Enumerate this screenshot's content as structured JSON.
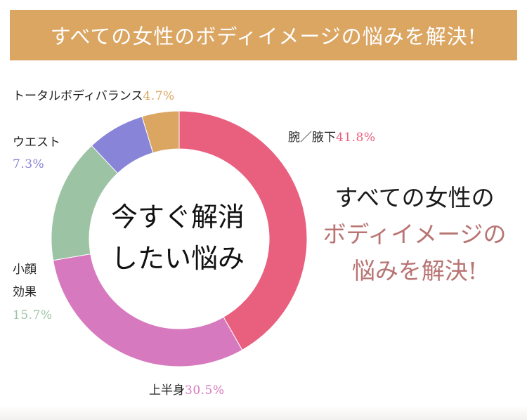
{
  "banner": {
    "title": "すべての女性のボディイメージの悩みを解決!"
  },
  "center": {
    "line1": "今すぐ解消",
    "line2": "したい悩み"
  },
  "tagline": {
    "line1": "すべての女性の",
    "line2": "ボディイメージの",
    "line3": "悩みを解決!"
  },
  "labels": {
    "arm": {
      "name": "腕／腋下",
      "pct": "41.8%"
    },
    "upper": {
      "name": "上半身",
      "pct": "30.5%"
    },
    "face": {
      "name1": "小顔",
      "name2": "効果",
      "pct": "15.7%"
    },
    "waist": {
      "name": "ウエスト",
      "pct": "7.3%"
    },
    "total": {
      "name": "トータルボディバランス",
      "pct": "4.7%"
    }
  },
  "chart_data": {
    "type": "pie",
    "style": "donut",
    "categories": [
      "腕／腋下",
      "上半身",
      "小顔効果",
      "ウエスト",
      "トータルボディバランス"
    ],
    "values": [
      41.8,
      30.5,
      15.7,
      7.3,
      4.7
    ],
    "unit": "%",
    "colors": [
      "#e95f7e",
      "#d779be",
      "#9bc3a4",
      "#8884d8",
      "#dba562"
    ]
  }
}
